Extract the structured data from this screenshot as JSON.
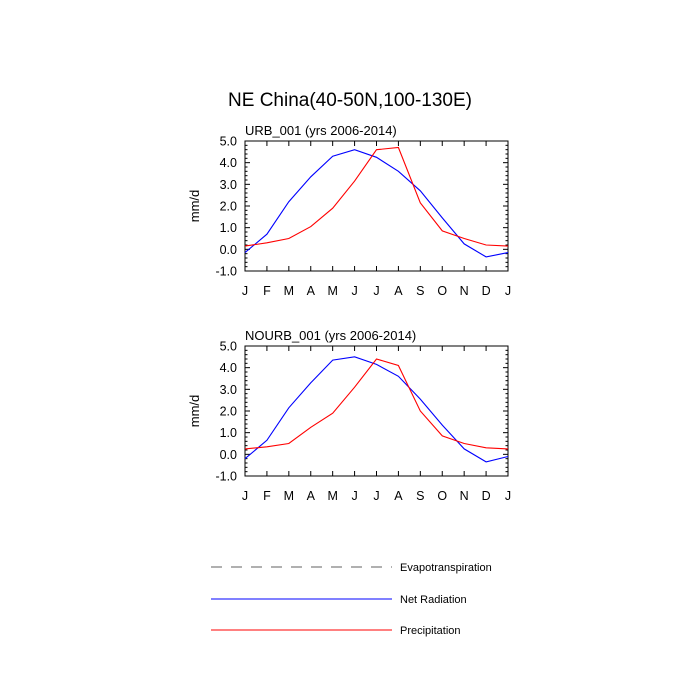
{
  "figure": {
    "title": "NE China(40-50N,100-130E)"
  },
  "chart_data": [
    {
      "type": "line",
      "title": "URB_001 (yrs 2006-2014)",
      "ylabel": "mm/d",
      "xlabel": "",
      "categories": [
        "J",
        "F",
        "M",
        "A",
        "M",
        "J",
        "J",
        "A",
        "S",
        "O",
        "N",
        "D",
        "J"
      ],
      "ylim": [
        -1.0,
        5.0
      ],
      "yticks": [
        "-1.0",
        "0.0",
        "1.0",
        "2.0",
        "3.0",
        "4.0",
        "5.0"
      ],
      "series": [
        {
          "name": "Net Radiation",
          "color": "#0000ff",
          "values": [
            -0.15,
            0.7,
            2.2,
            3.35,
            4.3,
            4.6,
            4.25,
            3.6,
            2.7,
            1.45,
            0.25,
            -0.35,
            -0.15
          ]
        },
        {
          "name": "Precipitation",
          "color": "#ff0000",
          "values": [
            0.15,
            0.3,
            0.5,
            1.05,
            1.9,
            3.15,
            4.6,
            4.7,
            2.15,
            0.85,
            0.5,
            0.2,
            0.15
          ]
        }
      ]
    },
    {
      "type": "line",
      "title": "NOURB_001 (yrs 2006-2014)",
      "ylabel": "mm/d",
      "xlabel": "",
      "categories": [
        "J",
        "F",
        "M",
        "A",
        "M",
        "J",
        "J",
        "A",
        "S",
        "O",
        "N",
        "D",
        "J"
      ],
      "ylim": [
        -1.0,
        5.0
      ],
      "yticks": [
        "-1.0",
        "0.0",
        "1.0",
        "2.0",
        "3.0",
        "4.0",
        "5.0"
      ],
      "series": [
        {
          "name": "Net Radiation",
          "color": "#0000ff",
          "values": [
            -0.2,
            0.65,
            2.15,
            3.3,
            4.35,
            4.5,
            4.15,
            3.6,
            2.55,
            1.35,
            0.25,
            -0.35,
            -0.1
          ]
        },
        {
          "name": "Precipitation",
          "color": "#ff0000",
          "values": [
            0.25,
            0.35,
            0.5,
            1.25,
            1.9,
            3.1,
            4.4,
            4.1,
            2.0,
            0.85,
            0.5,
            0.3,
            0.25
          ]
        }
      ]
    }
  ],
  "legend": {
    "items": [
      {
        "name": "Evapotranspiration",
        "color": "#808080",
        "dashed": true
      },
      {
        "name": "Net Radiation",
        "color": "#0000ff",
        "dashed": false
      },
      {
        "name": "Precipitation",
        "color": "#ff0000",
        "dashed": false
      }
    ]
  }
}
